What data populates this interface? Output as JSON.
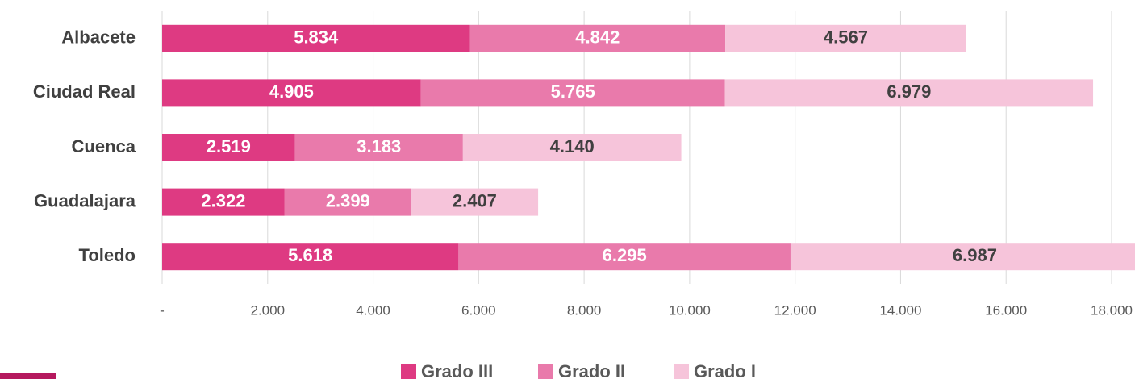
{
  "chart_data": {
    "type": "bar",
    "orientation": "horizontal",
    "stacked": true,
    "categories": [
      "Albacete",
      "Ciudad Real",
      "Cuenca",
      "Guadalajara",
      "Toledo"
    ],
    "series": [
      {
        "name": "Grado III",
        "color": "#de3a82",
        "values": [
          5834,
          4905,
          2519,
          2322,
          5618
        ],
        "value_labels": [
          "5.834",
          "4.905",
          "2.519",
          "2.322",
          "5.618"
        ]
      },
      {
        "name": "Grado II",
        "color": "#e97aab",
        "values": [
          4842,
          5765,
          3183,
          2399,
          6295
        ],
        "value_labels": [
          "4.842",
          "5.765",
          "3.183",
          "2.399",
          "6.295"
        ]
      },
      {
        "name": "Grado I",
        "color": "#f6c4da",
        "values": [
          4567,
          6979,
          4140,
          2407,
          6987
        ],
        "value_labels": [
          "4.567",
          "6.979",
          "4.140",
          "2.407",
          "6.987"
        ]
      }
    ],
    "xlim": [
      0,
      18000
    ],
    "xticks": [
      {
        "value": 0,
        "label": "-"
      },
      {
        "value": 2000,
        "label": "2.000"
      },
      {
        "value": 4000,
        "label": "4.000"
      },
      {
        "value": 6000,
        "label": "6.000"
      },
      {
        "value": 8000,
        "label": "8.000"
      },
      {
        "value": 10000,
        "label": "10.000"
      },
      {
        "value": 12000,
        "label": "12.000"
      },
      {
        "value": 14000,
        "label": "14.000"
      },
      {
        "value": 16000,
        "label": "16.000"
      },
      {
        "value": 18000,
        "label": "18.000"
      }
    ],
    "grid": true,
    "legend": "bottom"
  }
}
